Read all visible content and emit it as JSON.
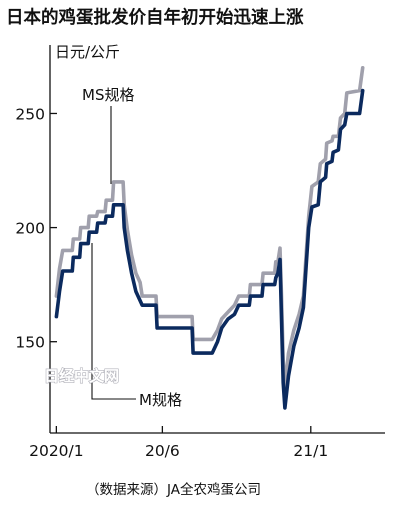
{
  "chart_data": {
    "type": "line",
    "title": "日本的鸡蛋批发价自年初开始迅速上涨",
    "unit_label": "日元/公斤",
    "source": "（数据来源）JA全农鸡蛋公司",
    "watermark": "日经中文网",
    "ylim": [
      110,
      280
    ],
    "yticks": [
      150,
      200,
      250
    ],
    "xticks": [
      {
        "label": "2020/1",
        "x": 0
      },
      {
        "label": "20/6",
        "x": 5
      },
      {
        "label": "21/1",
        "x": 12
      }
    ],
    "xlim": [
      -0.3,
      15.5
    ],
    "grid": false,
    "colors": {
      "M规格": "#0b2a5e",
      "MS规格": "#a0a0ac"
    },
    "series": [
      {
        "name": "MS规格",
        "points": [
          [
            0,
            170
          ],
          [
            0.15,
            182
          ],
          [
            0.3,
            190
          ],
          [
            0.75,
            190
          ],
          [
            0.8,
            195
          ],
          [
            1.1,
            195
          ],
          [
            1.15,
            200
          ],
          [
            1.5,
            200
          ],
          [
            1.55,
            205
          ],
          [
            1.9,
            205
          ],
          [
            1.95,
            207
          ],
          [
            2.3,
            207
          ],
          [
            2.35,
            212
          ],
          [
            2.65,
            212
          ],
          [
            2.7,
            220
          ],
          [
            3.15,
            220
          ],
          [
            3.2,
            210
          ],
          [
            3.35,
            199
          ],
          [
            3.55,
            188
          ],
          [
            3.75,
            180
          ],
          [
            3.95,
            176
          ],
          [
            4.05,
            170
          ],
          [
            4.7,
            170
          ],
          [
            4.75,
            161
          ],
          [
            6.4,
            161
          ],
          [
            6.45,
            151
          ],
          [
            7.35,
            151
          ],
          [
            7.6,
            155
          ],
          [
            7.8,
            160
          ],
          [
            8.1,
            163
          ],
          [
            8.4,
            166
          ],
          [
            8.6,
            170
          ],
          [
            9.1,
            170
          ],
          [
            9.15,
            175
          ],
          [
            9.7,
            175
          ],
          [
            9.75,
            180
          ],
          [
            10.3,
            180
          ],
          [
            10.35,
            185
          ],
          [
            10.45,
            185
          ],
          [
            10.55,
            191
          ],
          [
            10.62,
            170
          ],
          [
            10.7,
            142
          ],
          [
            10.78,
            130
          ],
          [
            10.95,
            145
          ],
          [
            11.2,
            155
          ],
          [
            11.45,
            162
          ],
          [
            11.65,
            170
          ],
          [
            11.9,
            205
          ],
          [
            12.05,
            218
          ],
          [
            12.35,
            220
          ],
          [
            12.45,
            228
          ],
          [
            12.7,
            230
          ],
          [
            12.75,
            237
          ],
          [
            13.0,
            238
          ],
          [
            13.05,
            240
          ],
          [
            13.3,
            240
          ],
          [
            13.4,
            248
          ],
          [
            13.6,
            250
          ],
          [
            13.7,
            259
          ],
          [
            14.3,
            260
          ],
          [
            14.45,
            270
          ]
        ]
      },
      {
        "name": "M规格",
        "points": [
          [
            0,
            161
          ],
          [
            0.15,
            172
          ],
          [
            0.3,
            181
          ],
          [
            0.75,
            181
          ],
          [
            0.8,
            187
          ],
          [
            1.1,
            187
          ],
          [
            1.15,
            193
          ],
          [
            1.5,
            193
          ],
          [
            1.55,
            198
          ],
          [
            1.9,
            198
          ],
          [
            1.95,
            202
          ],
          [
            2.3,
            202
          ],
          [
            2.35,
            205
          ],
          [
            2.65,
            205
          ],
          [
            2.7,
            210
          ],
          [
            3.15,
            210
          ],
          [
            3.2,
            200
          ],
          [
            3.35,
            190
          ],
          [
            3.55,
            180
          ],
          [
            3.75,
            172
          ],
          [
            3.95,
            168
          ],
          [
            4.05,
            166
          ],
          [
            4.7,
            166
          ],
          [
            4.75,
            156
          ],
          [
            6.4,
            156
          ],
          [
            6.45,
            145
          ],
          [
            7.35,
            145
          ],
          [
            7.6,
            150
          ],
          [
            7.8,
            156
          ],
          [
            8.1,
            160
          ],
          [
            8.4,
            162
          ],
          [
            8.6,
            166
          ],
          [
            9.1,
            166
          ],
          [
            9.15,
            170
          ],
          [
            9.7,
            170
          ],
          [
            9.75,
            175
          ],
          [
            10.3,
            175
          ],
          [
            10.35,
            178
          ],
          [
            10.45,
            180
          ],
          [
            10.55,
            186
          ],
          [
            10.62,
            160
          ],
          [
            10.7,
            132
          ],
          [
            10.78,
            121
          ],
          [
            10.95,
            135
          ],
          [
            11.2,
            148
          ],
          [
            11.45,
            156
          ],
          [
            11.65,
            165
          ],
          [
            11.9,
            200
          ],
          [
            12.05,
            209
          ],
          [
            12.35,
            210
          ],
          [
            12.45,
            220
          ],
          [
            12.7,
            222
          ],
          [
            12.75,
            228
          ],
          [
            13.0,
            229
          ],
          [
            13.05,
            233
          ],
          [
            13.3,
            234
          ],
          [
            13.4,
            243
          ],
          [
            13.6,
            245
          ],
          [
            13.7,
            250
          ],
          [
            14.3,
            250
          ],
          [
            14.45,
            260
          ]
        ]
      }
    ],
    "annotations": [
      {
        "text": "MS规格",
        "series": "MS规格"
      },
      {
        "text": "M规格",
        "series": "M规格"
      }
    ]
  }
}
